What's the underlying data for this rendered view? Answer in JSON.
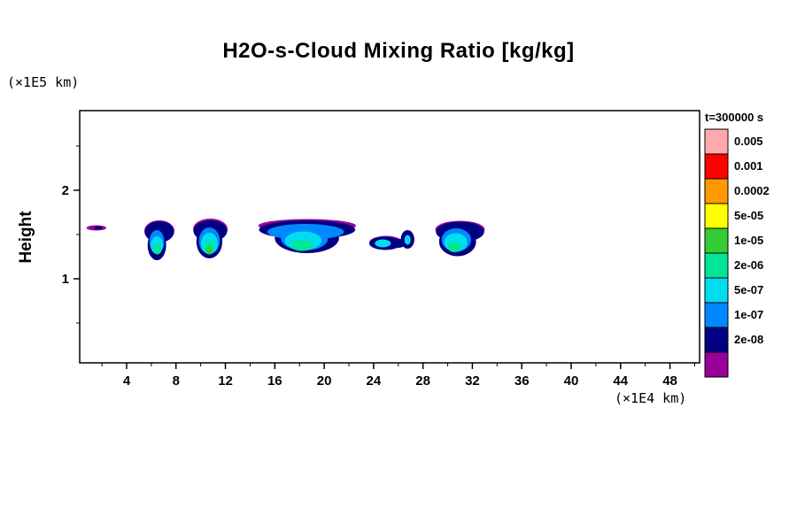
{
  "figure": {
    "title": "H2O-s-Cloud Mixing Ratio [kg/kg]",
    "y_axis_unit": "(×1E5 km)",
    "x_axis_unit": "(×1E4 km)",
    "y_axis_label": "Height",
    "time_annotation": "t=300000 s"
  },
  "chart_data": {
    "type": "contour",
    "title": "H2O-s-Cloud Mixing Ratio [kg/kg]",
    "xlabel": "(×1E4 km)",
    "ylabel": "Height (×1E5 km)",
    "time_annotation": "t=300000 s",
    "xlim": [
      0.2,
      50.4
    ],
    "ylim": [
      0.05,
      2.9
    ],
    "x_ticks": [
      4,
      8,
      12,
      16,
      20,
      24,
      28,
      32,
      36,
      40,
      44,
      48
    ],
    "x_minor_step": 2,
    "y_ticks": [
      1,
      2
    ],
    "y_minor_ticks": [
      0.5,
      1.5,
      2.5
    ],
    "grid": false,
    "legend_position": "right",
    "levels": [
      "0.005",
      "0.001",
      "0.0002",
      "5e-05",
      "1e-05",
      "2e-06",
      "5e-07",
      "1e-07",
      "2e-08"
    ],
    "palette": [
      "#FFAAAA",
      "#FF0000",
      "#FF9900",
      "#FFFF00",
      "#33CC33",
      "#00E699",
      "#00DDEE",
      "#0088FF",
      "#000080",
      "#990099"
    ],
    "clouds": [
      {
        "name": "sliver-left",
        "ellipses": [
          {
            "color": "#990099",
            "cx": 1.55,
            "cy": 1.575,
            "rx": 0.8,
            "ry": 0.03
          },
          {
            "color": "#000080",
            "cx": 1.7,
            "cy": 1.575,
            "rx": 0.35,
            "ry": 0.018
          }
        ]
      },
      {
        "name": "cloud-x6",
        "ellipses": [
          {
            "color": "#990099",
            "cx": 6.65,
            "cy": 1.54,
            "rx": 1.22,
            "ry": 0.12
          },
          {
            "color": "#000080",
            "cx": 6.65,
            "cy": 1.53,
            "rx": 1.18,
            "ry": 0.12
          },
          {
            "color": "#000080",
            "cx": 6.45,
            "cy": 1.38,
            "rx": 0.75,
            "ry": 0.17
          },
          {
            "color": "#0088FF",
            "cx": 6.45,
            "cy": 1.42,
            "rx": 0.6,
            "ry": 0.13
          },
          {
            "color": "#00DDEE",
            "cx": 6.45,
            "cy": 1.38,
            "rx": 0.5,
            "ry": 0.1
          },
          {
            "color": "#00E699",
            "cx": 6.5,
            "cy": 1.33,
            "rx": 0.32,
            "ry": 0.055
          }
        ]
      },
      {
        "name": "cloud-x10",
        "ellipses": [
          {
            "color": "#990099",
            "cx": 10.78,
            "cy": 1.56,
            "rx": 1.4,
            "ry": 0.12
          },
          {
            "color": "#000080",
            "cx": 10.78,
            "cy": 1.54,
            "rx": 1.36,
            "ry": 0.12
          },
          {
            "color": "#000080",
            "cx": 10.7,
            "cy": 1.42,
            "rx": 1.05,
            "ry": 0.19
          },
          {
            "color": "#0088FF",
            "cx": 10.7,
            "cy": 1.43,
            "rx": 0.85,
            "ry": 0.15
          },
          {
            "color": "#00DDEE",
            "cx": 10.7,
            "cy": 1.4,
            "rx": 0.68,
            "ry": 0.12
          },
          {
            "color": "#00E699",
            "cx": 10.7,
            "cy": 1.35,
            "rx": 0.45,
            "ry": 0.075
          },
          {
            "color": "#33CC33",
            "cx": 10.72,
            "cy": 1.325,
            "rx": 0.25,
            "ry": 0.04
          }
        ]
      },
      {
        "name": "cloud-x18-large",
        "ellipses": [
          {
            "color": "#990099",
            "cx": 18.62,
            "cy": 1.6,
            "rx": 3.95,
            "ry": 0.075
          },
          {
            "color": "#000080",
            "cx": 18.62,
            "cy": 1.555,
            "rx": 3.9,
            "ry": 0.105
          },
          {
            "color": "#000080",
            "cx": 18.6,
            "cy": 1.46,
            "rx": 2.6,
            "ry": 0.17
          },
          {
            "color": "#0088FF",
            "cx": 18.5,
            "cy": 1.53,
            "rx": 3.1,
            "ry": 0.09
          },
          {
            "color": "#0088FF",
            "cx": 18.4,
            "cy": 1.45,
            "rx": 1.9,
            "ry": 0.13
          },
          {
            "color": "#00DDEE",
            "cx": 18.3,
            "cy": 1.43,
            "rx": 1.5,
            "ry": 0.105
          },
          {
            "color": "#00E699",
            "cx": 18.2,
            "cy": 1.375,
            "rx": 0.95,
            "ry": 0.06
          }
        ]
      },
      {
        "name": "cloud-x25",
        "ellipses": [
          {
            "color": "#990099",
            "cx": 25.0,
            "cy": 1.41,
            "rx": 1.35,
            "ry": 0.075
          },
          {
            "color": "#000080",
            "cx": 24.95,
            "cy": 1.4,
            "rx": 1.3,
            "ry": 0.075
          },
          {
            "color": "#000080",
            "cx": 26.0,
            "cy": 1.4,
            "rx": 0.6,
            "ry": 0.05
          },
          {
            "color": "#000080",
            "cx": 26.75,
            "cy": 1.445,
            "rx": 0.55,
            "ry": 0.105
          },
          {
            "color": "#00DDEE",
            "cx": 24.75,
            "cy": 1.4,
            "rx": 0.65,
            "ry": 0.045
          },
          {
            "color": "#00DDEE",
            "cx": 26.75,
            "cy": 1.44,
            "rx": 0.25,
            "ry": 0.055
          }
        ]
      },
      {
        "name": "cloud-x31",
        "ellipses": [
          {
            "color": "#990099",
            "cx": 31.0,
            "cy": 1.555,
            "rx": 2.0,
            "ry": 0.1
          },
          {
            "color": "#000080",
            "cx": 31.0,
            "cy": 1.53,
            "rx": 1.95,
            "ry": 0.115
          },
          {
            "color": "#000080",
            "cx": 30.8,
            "cy": 1.42,
            "rx": 1.5,
            "ry": 0.165
          },
          {
            "color": "#0088FF",
            "cx": 30.7,
            "cy": 1.44,
            "rx": 1.2,
            "ry": 0.13
          },
          {
            "color": "#00DDEE",
            "cx": 30.65,
            "cy": 1.41,
            "rx": 0.95,
            "ry": 0.105
          },
          {
            "color": "#00E699",
            "cx": 30.55,
            "cy": 1.36,
            "rx": 0.55,
            "ry": 0.06
          }
        ]
      }
    ]
  }
}
